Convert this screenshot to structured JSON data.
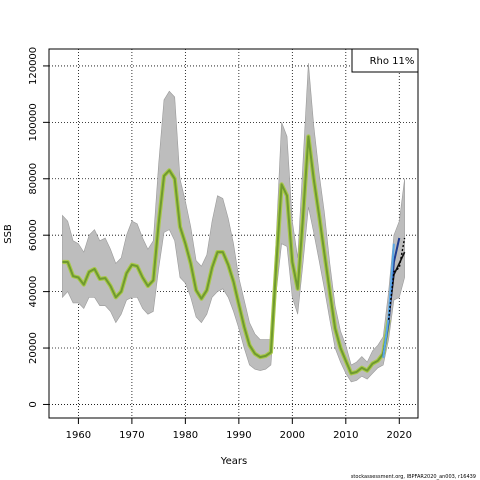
{
  "chart_data": {
    "type": "line",
    "xlabel": "Years",
    "ylabel": "SSB",
    "xlim": [
      1954.5,
      2023.5
    ],
    "ylim": [
      -4800,
      126000
    ],
    "x_ticks": [
      1960,
      1970,
      1980,
      1990,
      2000,
      2010,
      2020
    ],
    "x_tick_labels": [
      "1960",
      "1970",
      "1980",
      "1990",
      "2000",
      "2010",
      "2020"
    ],
    "y_ticks": [
      0,
      20000,
      40000,
      60000,
      80000,
      100000,
      120000
    ],
    "y_tick_labels": [
      "0",
      "20000",
      "40000",
      "60000",
      "80000",
      "100000",
      "120000"
    ],
    "grid": true,
    "legend": {
      "label": "Rho 11%",
      "position": "top-right"
    },
    "series": [
      {
        "kind": "ci_band",
        "color": "#bdbdbd",
        "x": [
          1957,
          1958,
          1959,
          1960,
          1961,
          1962,
          1963,
          1964,
          1965,
          1966,
          1967,
          1968,
          1969,
          1970,
          1971,
          1972,
          1973,
          1974,
          1975,
          1976,
          1977,
          1978,
          1979,
          1980,
          1981,
          1982,
          1983,
          1984,
          1985,
          1986,
          1987,
          1988,
          1989,
          1990,
          1991,
          1992,
          1993,
          1994,
          1995,
          1996,
          1997,
          1998,
          1999,
          2000,
          2001,
          2002,
          2003,
          2004,
          2005,
          2006,
          2007,
          2008,
          2009,
          2010,
          2011,
          2012,
          2013,
          2014,
          2015,
          2016,
          2017,
          2018,
          2019,
          2020,
          2021
        ],
        "upper": [
          67000,
          65000,
          58000,
          57000,
          54000,
          60000,
          62000,
          58000,
          59000,
          55000,
          50000,
          52000,
          60000,
          65000,
          64000,
          59000,
          55000,
          58000,
          85000,
          108000,
          111000,
          109000,
          80000,
          72000,
          63000,
          51000,
          49000,
          53000,
          65000,
          74000,
          73000,
          66000,
          57000,
          45000,
          37000,
          29000,
          25000,
          23000,
          23000,
          23000,
          60000,
          100000,
          95000,
          65000,
          52000,
          86000,
          121000,
          99000,
          82000,
          68000,
          50000,
          35000,
          26000,
          21000,
          14000,
          15000,
          17000,
          15000,
          19000,
          21000,
          24000,
          40000,
          60000,
          65000,
          80000
        ],
        "lower": [
          38000,
          40000,
          36000,
          36000,
          34000,
          38000,
          38000,
          35000,
          35000,
          33000,
          29000,
          32000,
          37000,
          38000,
          38000,
          34000,
          32000,
          33000,
          48000,
          61000,
          62000,
          58000,
          45000,
          43000,
          38000,
          31000,
          29000,
          32000,
          38000,
          40000,
          41000,
          38000,
          33000,
          27000,
          20000,
          14000,
          12500,
          12000,
          12500,
          14000,
          40000,
          57000,
          56000,
          38000,
          32000,
          50000,
          70000,
          61000,
          51000,
          41000,
          30000,
          20000,
          15000,
          11000,
          8000,
          8500,
          10000,
          9000,
          11000,
          13000,
          14000,
          23000,
          37000,
          38000,
          45000
        ]
      },
      {
        "kind": "retro_bundle",
        "color": "#6f9a2f",
        "x": [
          1957,
          1958,
          1959,
          1960,
          1961,
          1962,
          1963,
          1964,
          1965,
          1966,
          1967,
          1968,
          1969,
          1970,
          1971,
          1972,
          1973,
          1974,
          1975,
          1976,
          1977,
          1978,
          1979,
          1980,
          1981,
          1982,
          1983,
          1984,
          1985,
          1986,
          1987,
          1988,
          1989,
          1990,
          1991,
          1992,
          1993,
          1994,
          1995,
          1996,
          1997,
          1998,
          1999,
          2000,
          2001,
          2002,
          2003,
          2004,
          2005,
          2006,
          2007,
          2008,
          2009,
          2010,
          2011,
          2012,
          2013,
          2014,
          2015,
          2016,
          2017,
          2018
        ],
        "values": [
          50500,
          50500,
          45500,
          45000,
          42500,
          47000,
          48000,
          44500,
          44800,
          42000,
          38000,
          40000,
          46500,
          49500,
          49000,
          45000,
          42000,
          44000,
          64000,
          81000,
          83000,
          80000,
          63000,
          57000,
          50000,
          40500,
          37500,
          40500,
          48500,
          54000,
          54000,
          49500,
          43500,
          35500,
          27500,
          21000,
          18000,
          16800,
          17200,
          18500,
          49500,
          78000,
          74000,
          50500,
          41000,
          66500,
          95000,
          80000,
          67000,
          53500,
          40000,
          27000,
          20000,
          15500,
          11000,
          11500,
          13000,
          12000,
          14500,
          15500,
          18000,
          30000
        ]
      },
      {
        "kind": "recent_black",
        "color": "#111111",
        "x": [
          2017,
          2018,
          2019,
          2020,
          2021
        ],
        "values": [
          17500,
          30000,
          46000,
          50000,
          54000
        ]
      },
      {
        "kind": "peel_blue",
        "color": "#1f3b8f",
        "x": [
          2017,
          2018,
          2019,
          2020
        ],
        "values": [
          17000,
          29000,
          50500,
          59000
        ]
      },
      {
        "kind": "peel_lightblue",
        "color": "#5aa8e6",
        "x": [
          2017,
          2018,
          2019
        ],
        "values": [
          16500,
          31000,
          57000
        ]
      },
      {
        "kind": "dashed_black",
        "color": "#000000",
        "x": [
          2018,
          2019,
          2020,
          2021
        ],
        "values": [
          30000,
          47000,
          48500,
          59000
        ]
      }
    ]
  },
  "footer_text": "stockassessment.org, IBPFAR2020_an003, r16439"
}
